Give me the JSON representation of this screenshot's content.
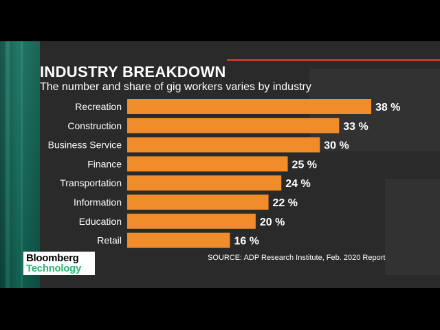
{
  "header": {
    "title": "INDUSTRY BREAKDOWN",
    "subtitle": "The number and share of gig workers varies by industry"
  },
  "source": "SOURCE: ADP Research Institute, Feb. 2020 Report",
  "logo": {
    "line1": "Bloomberg",
    "line2": "Technology"
  },
  "colors": {
    "bar": "#f08c2a",
    "text": "#ffffff",
    "accent": "#c0392b",
    "brand_green": "#2bb673"
  },
  "chart_data": {
    "type": "bar",
    "orientation": "horizontal",
    "categories": [
      "Recreation",
      "Construction",
      "Business Service",
      "Finance",
      "Transportation",
      "Information",
      "Education",
      "Retail"
    ],
    "values": [
      38,
      33,
      30,
      25,
      24,
      22,
      20,
      16
    ],
    "value_labels": [
      "38 %",
      "33 %",
      "30 %",
      "25 %",
      "24 %",
      "22 %",
      "20 %",
      "16 %"
    ],
    "unit": "%",
    "grid": false,
    "legend": "none",
    "xlim": [
      0,
      38
    ]
  }
}
